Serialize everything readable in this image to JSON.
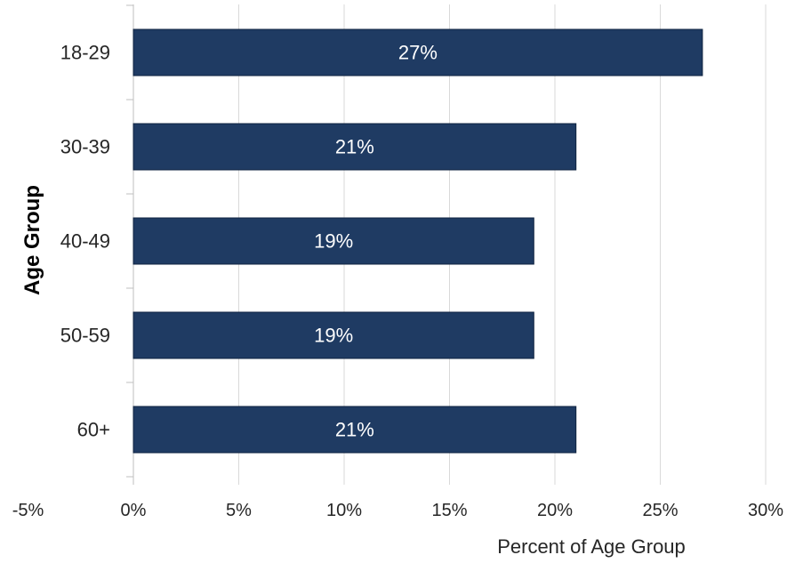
{
  "chart_data": {
    "type": "bar",
    "orientation": "horizontal",
    "categories": [
      "18-29",
      "30-39",
      "40-49",
      "50-59",
      "60+"
    ],
    "values": [
      27,
      21,
      19,
      19,
      21
    ],
    "data_labels": [
      "27%",
      "21%",
      "19%",
      "19%",
      "21%"
    ],
    "xlabel": "Percent of Age Group",
    "ylabel": "Age Group",
    "x_ticks": [
      "-5%",
      "0%",
      "5%",
      "10%",
      "15%",
      "20%",
      "25%",
      "30%"
    ],
    "xlim": [
      -5,
      30
    ],
    "grid": true,
    "bar_color": "#1f3b63"
  }
}
